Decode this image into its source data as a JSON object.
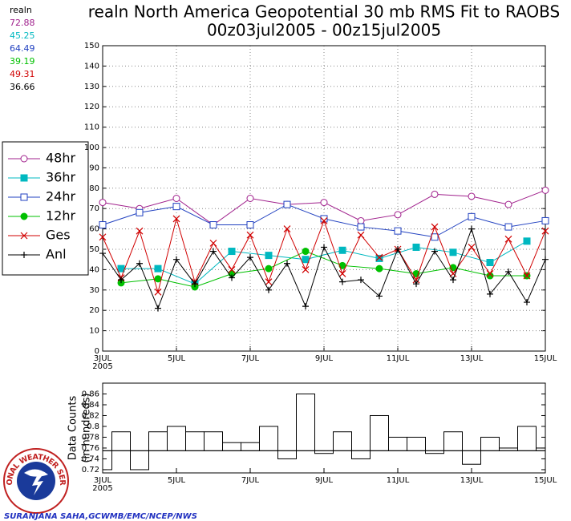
{
  "chart_data": [
    {
      "type": "line",
      "title": "realn North America Geopotential 30 mb RMS Fit to RAOBS",
      "subtitle": "00z03jul2005 - 00z15jul2005",
      "stats_label": "realn",
      "xlim": [
        3,
        15
      ],
      "xticks": [
        {
          "value": 3,
          "label": "3JUL"
        },
        {
          "value": 5,
          "label": "5JUL"
        },
        {
          "value": 7,
          "label": "7JUL"
        },
        {
          "value": 9,
          "label": "9JUL"
        },
        {
          "value": 11,
          "label": "11JUL"
        },
        {
          "value": 13,
          "label": "13JUL"
        },
        {
          "value": 15,
          "label": "15JUL"
        }
      ],
      "x_year": "2005",
      "ylim": [
        0,
        150
      ],
      "yticks": [
        0,
        10,
        20,
        30,
        40,
        50,
        60,
        70,
        80,
        90,
        100,
        110,
        120,
        130,
        140,
        150
      ],
      "grid": true,
      "legend": "left",
      "series": [
        {
          "name": "48hr",
          "color": "#a0208c",
          "marker": "circle-open",
          "mean": 72.88,
          "x": [
            3,
            4,
            5,
            6,
            7,
            8,
            9,
            10,
            11,
            12,
            13,
            14,
            15
          ],
          "values": [
            73,
            70,
            75,
            62,
            75,
            72,
            73,
            64,
            67,
            77,
            76,
            72,
            79
          ]
        },
        {
          "name": "36hr",
          "color": "#00b8c0",
          "marker": "square",
          "mean": 45.25,
          "x": [
            3.5,
            4.5,
            5.5,
            6.5,
            7.5,
            8.5,
            9.5,
            10.5,
            11.5,
            12.5,
            13.5,
            14.5
          ],
          "values": [
            40.5,
            40.5,
            33,
            49,
            47,
            45,
            49.5,
            45.5,
            51,
            48.5,
            43.5,
            54
          ]
        },
        {
          "name": "24hr",
          "color": "#2040c0",
          "marker": "square-open",
          "mean": 64.49,
          "x": [
            3,
            4,
            5,
            6,
            7,
            8,
            9,
            10,
            11,
            12,
            13,
            14,
            15
          ],
          "values": [
            62,
            68,
            71,
            62,
            62,
            72,
            65,
            61,
            59,
            56,
            66,
            61,
            64
          ]
        },
        {
          "name": "12hr",
          "color": "#00c000",
          "marker": "circle",
          "mean": 39.19,
          "x": [
            3.5,
            4.5,
            5.5,
            6.5,
            7.5,
            8.5,
            9.5,
            10.5,
            11.5,
            12.5,
            13.5,
            14.5
          ],
          "values": [
            33.5,
            35.5,
            31.5,
            38,
            40.5,
            49,
            42,
            40.5,
            38,
            41,
            37,
            37
          ]
        },
        {
          "name": "Ges",
          "color": "#d00000",
          "marker": "x",
          "mean": 49.31,
          "x": [
            3,
            3.5,
            4,
            4.5,
            5,
            5.5,
            6,
            6.5,
            7,
            7.5,
            8,
            8.5,
            9,
            9.5,
            10,
            10.5,
            11,
            11.5,
            12,
            12.5,
            13,
            13.5,
            14,
            14.5,
            15
          ],
          "values": [
            56,
            36,
            59,
            29,
            65,
            34,
            53,
            40,
            57,
            34,
            60,
            40,
            64,
            38,
            57,
            46,
            50,
            35,
            61,
            38,
            51,
            38,
            55,
            37,
            59
          ]
        },
        {
          "name": "Anl",
          "color": "#000000",
          "marker": "plus",
          "mean": 36.66,
          "x": [
            3,
            3.5,
            4,
            4.5,
            5,
            5.5,
            6,
            6.5,
            7,
            7.5,
            8,
            8.5,
            9,
            9.5,
            10,
            10.5,
            11,
            11.5,
            12,
            12.5,
            13,
            13.5,
            14,
            14.5,
            15
          ],
          "values": [
            48,
            35,
            43,
            21,
            45,
            33,
            49,
            36,
            46,
            30,
            43,
            22,
            51,
            34,
            35,
            27,
            50,
            33,
            49,
            35,
            60,
            28,
            39,
            24,
            45
          ]
        }
      ]
    },
    {
      "type": "step",
      "ylabel": "Data Counts",
      "ylabel2": "(in hundreds)",
      "xlim": [
        3,
        15
      ],
      "xticks": [
        {
          "value": 3,
          "label": "3JUL"
        },
        {
          "value": 5,
          "label": "5JUL"
        },
        {
          "value": 7,
          "label": "7JUL"
        },
        {
          "value": 9,
          "label": "9JUL"
        },
        {
          "value": 11,
          "label": "11JUL"
        },
        {
          "value": 13,
          "label": "13JUL"
        },
        {
          "value": 15,
          "label": "15JUL"
        }
      ],
      "x_year": "2005",
      "ylim": [
        0.714,
        0.88
      ],
      "yticks": [
        0.72,
        0.74,
        0.76,
        0.78,
        0.8,
        0.82,
        0.84,
        0.86
      ],
      "color": "#000000",
      "mean_line": 0.755,
      "x": [
        3,
        3.5,
        4,
        4.5,
        5,
        5.5,
        6,
        6.5,
        7,
        7.5,
        8,
        8.5,
        9,
        9.5,
        10,
        10.5,
        11,
        11.5,
        12,
        12.5,
        13,
        13.5,
        14,
        14.5,
        15
      ],
      "values": [
        0.72,
        0.79,
        0.72,
        0.79,
        0.8,
        0.79,
        0.79,
        0.77,
        0.77,
        0.8,
        0.74,
        0.86,
        0.75,
        0.79,
        0.74,
        0.82,
        0.78,
        0.78,
        0.75,
        0.79,
        0.73,
        0.78,
        0.76,
        0.8,
        0.76
      ]
    }
  ],
  "logo": {
    "text": "NATIONAL WEATHER SERVICE"
  },
  "credit": "SURANJANA SAHA,GCWMB/EMC/NCEP/NWS"
}
